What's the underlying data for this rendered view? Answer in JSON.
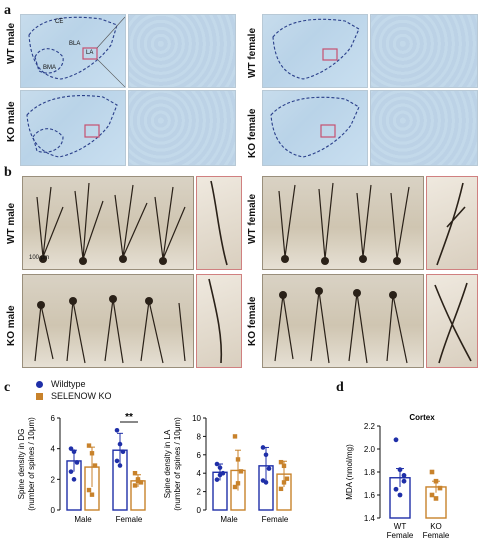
{
  "panels": {
    "a": "a",
    "b": "b",
    "c": "c",
    "d": "d"
  },
  "panel_a": {
    "row_labels": [
      "WT male",
      "KO male",
      "WT female",
      "KO female"
    ],
    "region_labels": [
      "CE",
      "LA",
      "BLA",
      "BMA"
    ]
  },
  "panel_b": {
    "row_labels": [
      "WT male",
      "KO male",
      "WT female",
      "KO female"
    ],
    "scale_bar": "100 μm"
  },
  "legend": {
    "wildtype": "Wildtype",
    "ko": "SELENOW KO",
    "wildtype_color": "#1f2fa8",
    "ko_color": "#c8822b"
  },
  "chart_data": [
    {
      "type": "bar",
      "ylabel_line1": "Spine density in DG",
      "ylabel_line2": "(number of spines / 10μm)",
      "categories": [
        "Male",
        "Female"
      ],
      "series": [
        {
          "name": "Wildtype",
          "values": [
            3.2,
            3.9
          ],
          "errors": [
            0.7,
            1.1
          ],
          "points": [
            [
              4.0,
              3.8,
              3.1,
              2.5,
              2.0
            ],
            [
              5.2,
              4.3,
              3.8,
              3.2,
              2.9
            ]
          ]
        },
        {
          "name": "SELENOW KO",
          "values": [
            2.8,
            1.9
          ],
          "errors": [
            1.3,
            0.4
          ],
          "points": [
            [
              4.2,
              3.7,
              2.9,
              1.3,
              1.0
            ],
            [
              2.4,
              2.0,
              1.8,
              1.6,
              1.9
            ]
          ]
        }
      ],
      "ylim": [
        0,
        6
      ],
      "yticks": [
        0,
        2,
        4,
        6
      ],
      "annotation": "**"
    },
    {
      "type": "bar",
      "ylabel_line1": "Spine density in LA",
      "ylabel_line2": "(number of spines / 10μm)",
      "categories": [
        "Male",
        "Female"
      ],
      "series": [
        {
          "name": "Wildtype",
          "values": [
            4.1,
            4.8
          ],
          "errors": [
            0.9,
            2.0
          ],
          "points": [
            [
              5.0,
              4.6,
              4.0,
              3.3,
              3.8
            ],
            [
              6.8,
              6.0,
              4.5,
              3.2,
              3.0
            ]
          ]
        },
        {
          "name": "SELENOW KO",
          "values": [
            4.3,
            3.9
          ],
          "errors": [
            2.2,
            1.4
          ],
          "points": [
            [
              8.0,
              5.5,
              4.2,
              2.5,
              2.9
            ],
            [
              5.2,
              4.8,
              3.4,
              2.3,
              3.0
            ]
          ]
        }
      ],
      "ylim": [
        0,
        10
      ],
      "yticks": [
        0,
        2,
        4,
        6,
        8,
        10
      ]
    },
    {
      "type": "bar",
      "title": "Cortex",
      "ylabel": "MDA (nmol/mg)",
      "categories": [
        "WT\nFemale",
        "KO\nFemale"
      ],
      "values": [
        1.75,
        1.67
      ],
      "errors": [
        0.08,
        0.05
      ],
      "points": [
        [
          2.08,
          1.82,
          1.77,
          1.65,
          1.6,
          1.72
        ],
        [
          1.8,
          1.72,
          1.66,
          1.6,
          1.57
        ]
      ],
      "ylim": [
        1.4,
        2.2
      ],
      "yticks": [
        1.4,
        1.6,
        1.8,
        2.0,
        2.2
      ]
    }
  ]
}
